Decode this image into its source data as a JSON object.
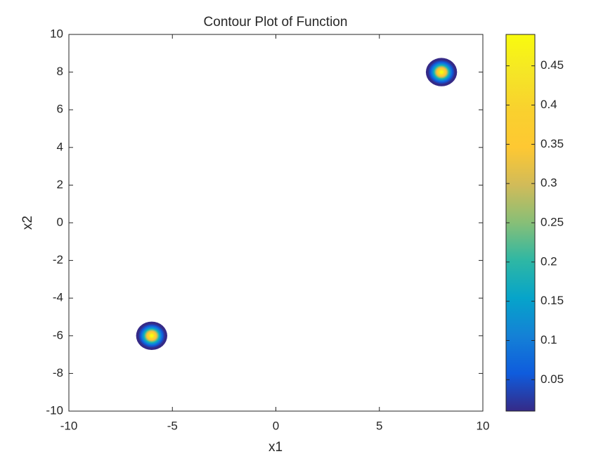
{
  "chart_data": {
    "type": "contour",
    "title": "Contour Plot of Function",
    "x_label": "x1",
    "y_label": "x2",
    "xlim": [
      -10,
      10
    ],
    "ylim": [
      -10,
      10
    ],
    "xticks": [
      -10,
      -5,
      0,
      5,
      10
    ],
    "yticks": [
      -10,
      -8,
      -6,
      -4,
      -2,
      0,
      2,
      4,
      6,
      8,
      10
    ],
    "peaks": [
      {
        "x": -6,
        "y": -6,
        "amplitude": 0.49,
        "sigma": 0.27
      },
      {
        "x": 8,
        "y": 8,
        "amplitude": 0.49,
        "sigma": 0.27
      }
    ],
    "colorbar": {
      "clim": [
        0.01,
        0.49
      ],
      "ticks": [
        0.05,
        0.1,
        0.15,
        0.2,
        0.25,
        0.3,
        0.35,
        0.4,
        0.45
      ]
    },
    "colormap": [
      "#352a87",
      "#0f5cdd",
      "#1481d6",
      "#06a4ca",
      "#2eb7a4",
      "#87bf77",
      "#d1bb59",
      "#fec832",
      "#f9d12e",
      "#f5e626",
      "#f9fb0e"
    ]
  }
}
